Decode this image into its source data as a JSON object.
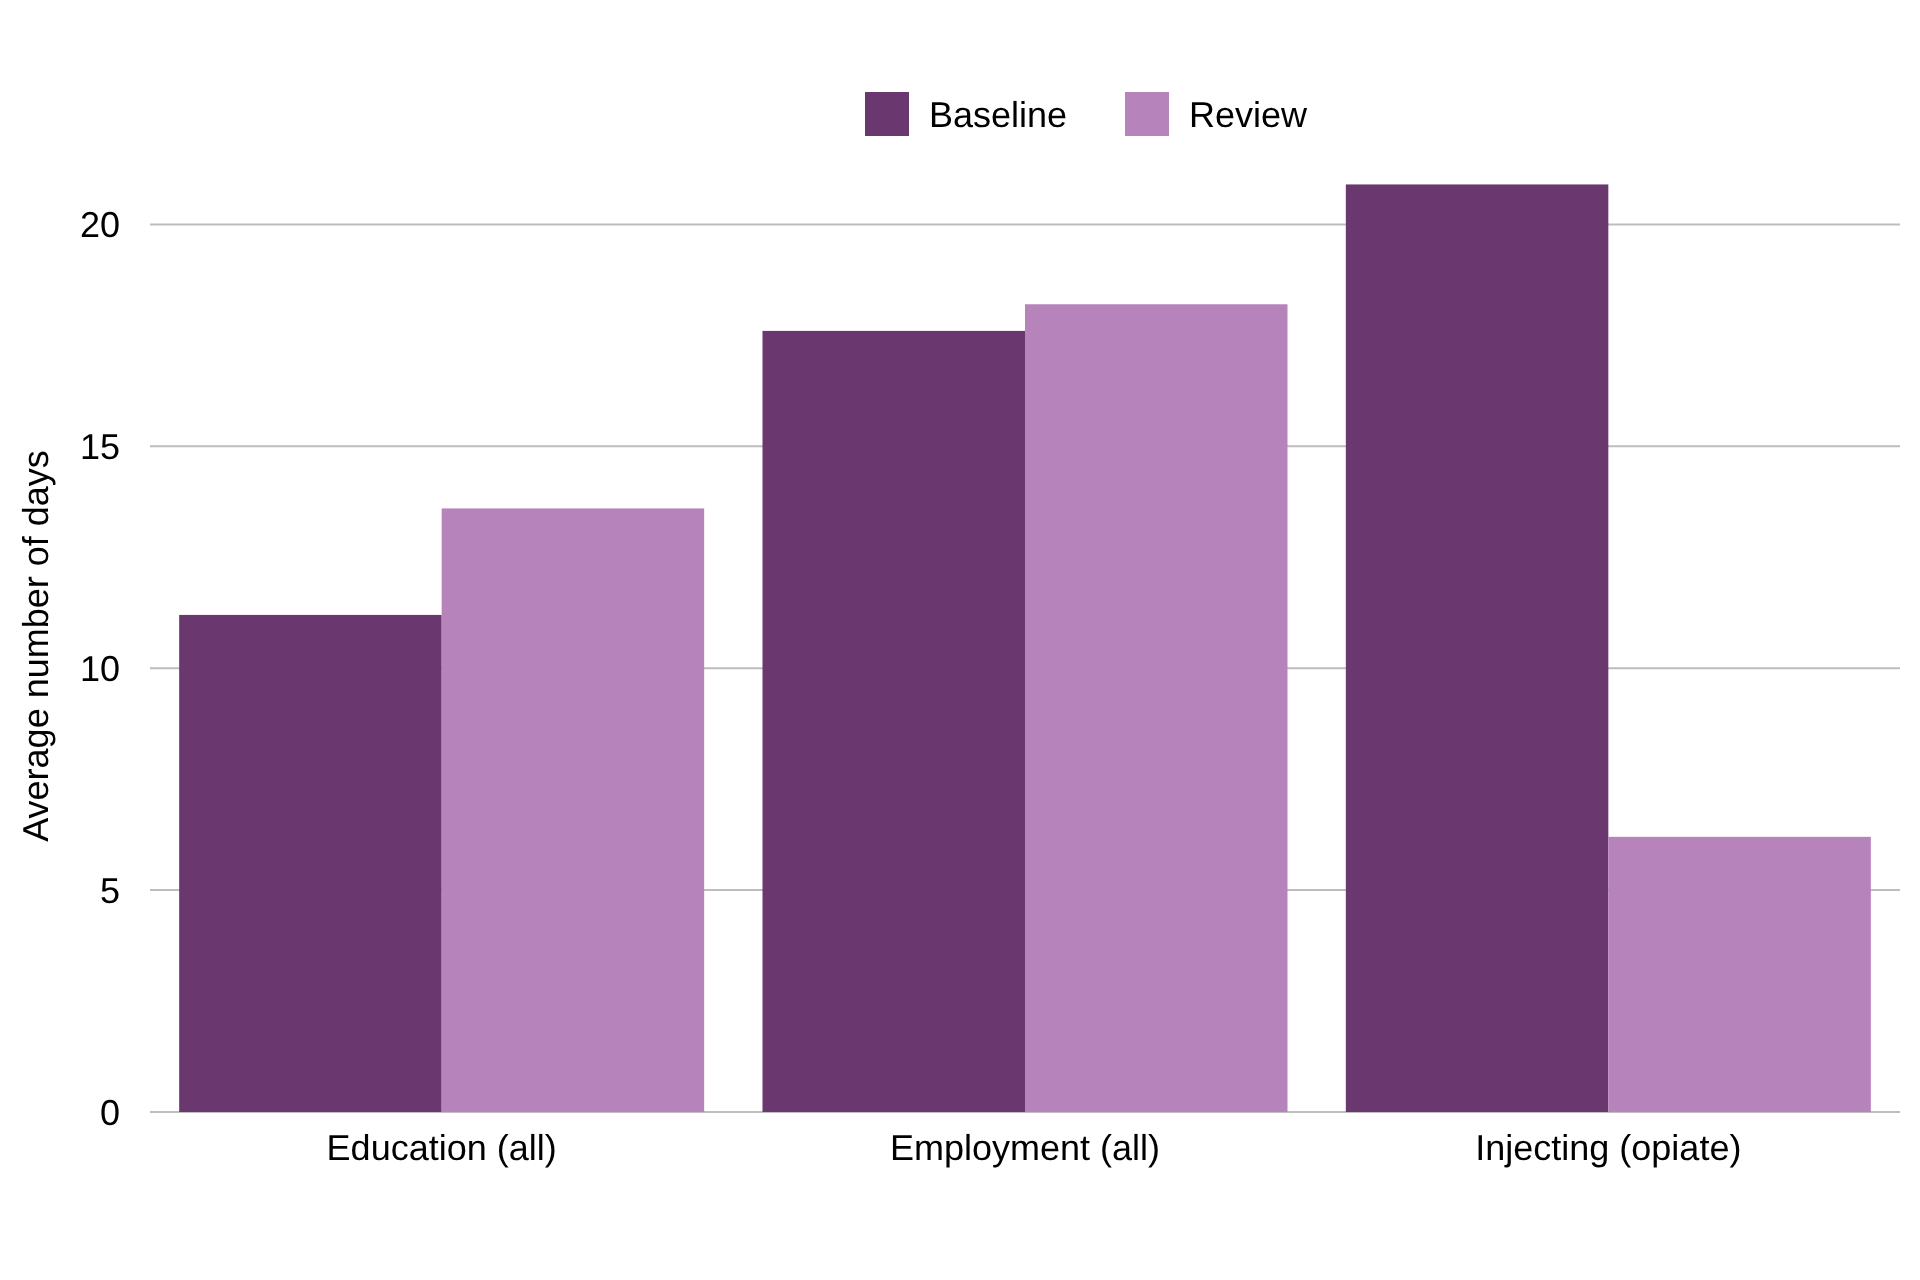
{
  "chart_data": {
    "type": "bar",
    "ylabel": "Average number of days",
    "categories": [
      "Education (all)",
      "Employment (all)",
      "Injecting (opiate)"
    ],
    "series": [
      {
        "name": "Baseline",
        "color": "#6a376f",
        "values": [
          11.2,
          17.6,
          20.9
        ]
      },
      {
        "name": "Review",
        "color": "#b683bb",
        "values": [
          13.6,
          18.2,
          6.2
        ]
      }
    ],
    "ylim": [
      0,
      21
    ],
    "yticks": [
      0,
      5,
      10,
      15,
      20
    ],
    "grid": "y",
    "legend": "top"
  }
}
